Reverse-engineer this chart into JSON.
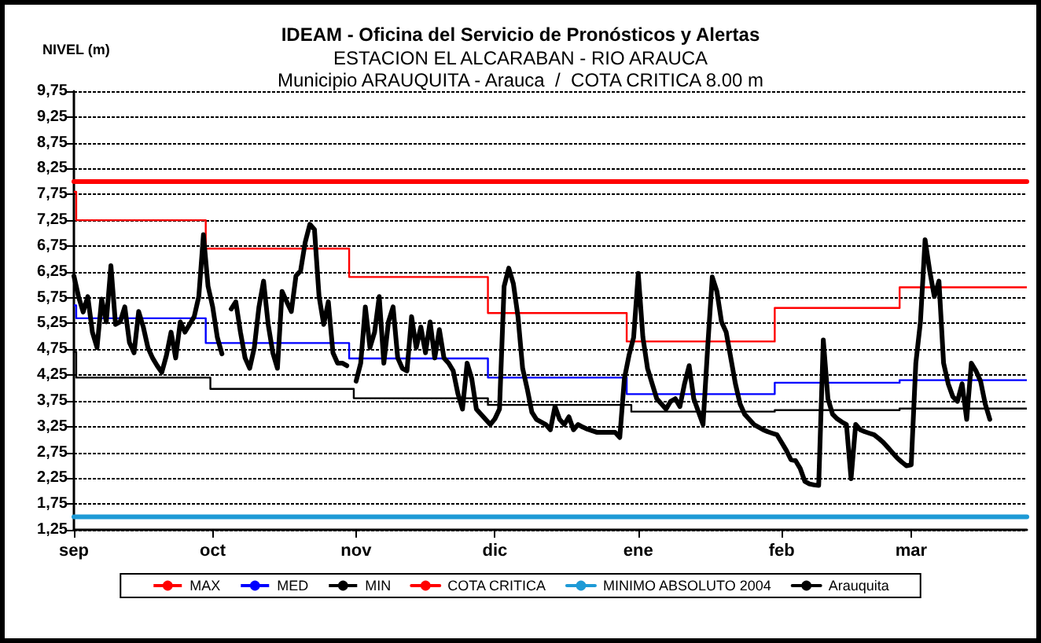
{
  "chart_data": {
    "type": "line",
    "title": "IDEAM - Oficina del Servicio de Pronósticos y Alertas",
    "subtitle": "ESTACION EL ALCARABAN - RIO ARAUCA\nMunicipio ARAUQUITA - Arauca  /  COTA CRITICA 8.00 m",
    "ylabel": "NIVEL (m)",
    "categories": [
      "sep",
      null,
      null,
      null,
      null,
      null,
      null,
      null,
      null,
      null,
      null,
      null,
      null,
      null,
      null,
      null,
      null,
      null,
      null,
      null,
      null,
      null,
      null,
      null,
      null,
      null,
      null,
      null,
      null,
      null,
      "oct",
      null,
      null,
      null,
      null,
      null,
      null,
      null,
      null,
      null,
      null,
      null,
      null,
      null,
      null,
      null,
      null,
      null,
      null,
      null,
      null,
      null,
      null,
      null,
      null,
      null,
      null,
      null,
      null,
      null,
      null,
      "nov",
      null,
      null,
      null,
      null,
      null,
      null,
      null,
      null,
      null,
      null,
      null,
      null,
      null,
      null,
      null,
      null,
      null,
      null,
      null,
      null,
      null,
      null,
      null,
      null,
      null,
      null,
      null,
      null,
      null,
      "dic",
      null,
      null,
      null,
      null,
      null,
      null,
      null,
      null,
      null,
      null,
      null,
      null,
      null,
      null,
      null,
      null,
      null,
      null,
      null,
      null,
      null,
      null,
      null,
      null,
      null,
      null,
      null,
      null,
      null,
      null,
      "ene",
      null,
      null,
      null,
      null,
      null,
      null,
      null,
      null,
      null,
      null,
      null,
      null,
      null,
      null,
      null,
      null,
      null,
      null,
      null,
      null,
      null,
      null,
      null,
      null,
      null,
      null,
      null,
      null,
      null,
      null,
      "feb",
      null,
      null,
      null,
      null,
      null,
      null,
      null,
      null,
      null,
      null,
      null,
      null,
      null,
      null,
      null,
      null,
      null,
      null,
      null,
      null,
      null,
      null,
      null,
      null,
      null,
      null,
      null,
      "mar",
      null,
      null,
      null,
      null,
      null,
      null,
      null,
      null,
      null,
      null,
      null,
      null,
      null,
      null,
      null,
      null,
      null,
      null,
      null,
      null,
      null,
      null,
      null,
      null,
      null
    ],
    "ylim": [
      1.25,
      9.75
    ],
    "yticks": [
      {
        "value": 1.25,
        "label": "1,25"
      },
      {
        "value": 1.75,
        "label": "1,75"
      },
      {
        "value": 2.25,
        "label": "2,25"
      },
      {
        "value": 2.75,
        "label": "2,75"
      },
      {
        "value": 3.25,
        "label": "3,25"
      },
      {
        "value": 3.75,
        "label": "3,75"
      },
      {
        "value": 4.25,
        "label": "4,25"
      },
      {
        "value": 4.75,
        "label": "4,75"
      },
      {
        "value": 5.25,
        "label": "5,25"
      },
      {
        "value": 5.75,
        "label": "5,75"
      },
      {
        "value": 6.25,
        "label": "6,25"
      },
      {
        "value": 6.75,
        "label": "6,75"
      },
      {
        "value": 7.25,
        "label": "7,25"
      },
      {
        "value": 7.75,
        "label": "7,75"
      },
      {
        "value": 8.25,
        "label": "8,25"
      },
      {
        "value": 8.75,
        "label": "8,75"
      },
      {
        "value": 9.25,
        "label": "9,25"
      },
      {
        "value": 9.75,
        "label": "9,75"
      }
    ],
    "grid": "y",
    "legend": "bottom",
    "marker": "none",
    "series": [
      {
        "name": "MAX",
        "type": "step",
        "color": "#ff0000",
        "values": [
          7.8,
          7.25,
          7.25,
          7.25,
          7.25,
          7.25,
          7.25,
          7.25,
          7.25,
          7.25,
          7.25,
          7.25,
          7.25,
          7.25,
          7.25,
          7.25,
          7.25,
          7.25,
          7.25,
          7.25,
          7.25,
          7.25,
          7.25,
          7.25,
          7.25,
          7.25,
          7.25,
          7.25,
          7.25,
          6.7,
          6.7,
          6.7,
          6.7,
          6.7,
          6.7,
          6.7,
          6.7,
          6.7,
          6.7,
          6.7,
          6.7,
          6.7,
          6.7,
          6.7,
          6.7,
          6.7,
          6.7,
          6.7,
          6.7,
          6.7,
          6.7,
          6.7,
          6.7,
          6.7,
          6.7,
          6.7,
          6.7,
          6.7,
          6.7,
          6.7,
          6.15,
          6.15,
          6.15,
          6.15,
          6.15,
          6.15,
          6.15,
          6.15,
          6.15,
          6.15,
          6.15,
          6.15,
          6.15,
          6.15,
          6.15,
          6.15,
          6.15,
          6.15,
          6.15,
          6.15,
          6.15,
          6.15,
          6.15,
          6.15,
          6.15,
          6.15,
          6.15,
          6.15,
          6.15,
          6.15,
          5.45,
          5.45,
          5.45,
          5.45,
          5.45,
          5.45,
          5.45,
          5.45,
          5.45,
          5.45,
          5.45,
          5.45,
          5.45,
          5.45,
          5.45,
          5.45,
          5.45,
          5.45,
          5.45,
          5.45,
          5.45,
          5.45,
          5.45,
          5.45,
          5.45,
          5.45,
          5.45,
          5.45,
          5.45,
          5.45,
          4.9,
          4.9,
          4.9,
          4.9,
          4.9,
          4.9,
          4.9,
          4.9,
          4.9,
          4.9,
          4.9,
          4.9,
          4.9,
          4.9,
          4.9,
          4.9,
          4.9,
          4.9,
          4.9,
          4.9,
          4.9,
          4.9,
          4.9,
          4.9,
          4.9,
          4.9,
          4.9,
          4.9,
          4.9,
          4.9,
          4.9,
          4.9,
          5.55,
          5.55,
          5.55,
          5.55,
          5.55,
          5.55,
          5.55,
          5.55,
          5.55,
          5.55,
          5.55,
          5.55,
          5.55,
          5.55,
          5.55,
          5.55,
          5.55,
          5.55,
          5.55,
          5.55,
          5.55,
          5.55,
          5.55,
          5.55,
          5.55,
          5.55,
          5.55,
          5.95,
          5.95,
          5.95,
          5.95,
          5.95,
          5.95,
          5.95,
          5.95,
          5.95,
          5.95,
          5.95,
          5.95,
          5.95,
          5.95,
          5.95,
          5.95,
          5.95,
          5.95,
          5.95,
          5.95,
          5.95,
          5.95,
          5.95,
          5.95,
          5.95,
          5.95,
          5.95,
          5.95
        ]
      },
      {
        "name": "MED",
        "type": "step",
        "color": "#0000ff",
        "values": [
          5.6,
          5.35,
          5.35,
          5.35,
          5.35,
          5.35,
          5.35,
          5.35,
          5.35,
          5.35,
          5.35,
          5.35,
          5.35,
          5.35,
          5.35,
          5.35,
          5.35,
          5.35,
          5.35,
          5.35,
          5.35,
          5.35,
          5.35,
          5.35,
          5.35,
          5.35,
          5.35,
          5.35,
          5.35,
          4.87,
          4.87,
          4.87,
          4.87,
          4.87,
          4.87,
          4.87,
          4.87,
          4.87,
          4.87,
          4.87,
          4.87,
          4.87,
          4.87,
          4.87,
          4.87,
          4.87,
          4.87,
          4.87,
          4.87,
          4.87,
          4.87,
          4.87,
          4.87,
          4.87,
          4.87,
          4.87,
          4.87,
          4.87,
          4.87,
          4.87,
          4.57,
          4.57,
          4.57,
          4.57,
          4.57,
          4.57,
          4.57,
          4.57,
          4.57,
          4.57,
          4.57,
          4.57,
          4.57,
          4.57,
          4.57,
          4.57,
          4.57,
          4.57,
          4.57,
          4.57,
          4.57,
          4.57,
          4.57,
          4.57,
          4.57,
          4.57,
          4.57,
          4.57,
          4.57,
          4.57,
          4.2,
          4.2,
          4.2,
          4.2,
          4.2,
          4.2,
          4.2,
          4.2,
          4.2,
          4.2,
          4.2,
          4.2,
          4.2,
          4.2,
          4.2,
          4.2,
          4.2,
          4.2,
          4.2,
          4.2,
          4.2,
          4.2,
          4.2,
          4.2,
          4.2,
          4.2,
          4.2,
          4.2,
          4.2,
          4.2,
          3.88,
          3.88,
          3.88,
          3.88,
          3.88,
          3.88,
          3.88,
          3.88,
          3.88,
          3.88,
          3.88,
          3.88,
          3.88,
          3.88,
          3.88,
          3.88,
          3.88,
          3.88,
          3.88,
          3.88,
          3.88,
          3.88,
          3.88,
          3.88,
          3.88,
          3.88,
          3.88,
          3.88,
          3.88,
          3.88,
          3.88,
          3.88,
          4.1,
          4.1,
          4.1,
          4.1,
          4.1,
          4.1,
          4.1,
          4.1,
          4.1,
          4.1,
          4.1,
          4.1,
          4.1,
          4.1,
          4.1,
          4.1,
          4.1,
          4.1,
          4.1,
          4.1,
          4.1,
          4.1,
          4.1,
          4.1,
          4.1,
          4.1,
          4.1,
          4.15,
          4.15,
          4.15,
          4.15,
          4.15,
          4.15,
          4.15,
          4.15,
          4.15,
          4.15,
          4.15,
          4.15,
          4.15,
          4.15,
          4.15,
          4.15,
          4.15,
          4.15,
          4.15,
          4.15,
          4.15,
          4.15,
          4.15,
          4.15,
          4.15,
          4.15,
          4.15,
          4.15
        ]
      },
      {
        "name": "MIN",
        "type": "step",
        "color": "#000000",
        "values": [
          4.7,
          4.2,
          4.2,
          4.2,
          4.2,
          4.2,
          4.2,
          4.2,
          4.2,
          4.2,
          4.2,
          4.2,
          4.2,
          4.2,
          4.2,
          4.2,
          4.2,
          4.2,
          4.2,
          4.2,
          4.2,
          4.2,
          4.2,
          4.2,
          4.2,
          4.2,
          4.2,
          4.2,
          4.2,
          4.2,
          3.98,
          3.98,
          3.98,
          3.98,
          3.98,
          3.98,
          3.98,
          3.98,
          3.98,
          3.98,
          3.98,
          3.98,
          3.98,
          3.98,
          3.98,
          3.98,
          3.98,
          3.98,
          3.98,
          3.98,
          3.98,
          3.98,
          3.98,
          3.98,
          3.98,
          3.98,
          3.98,
          3.98,
          3.98,
          3.98,
          3.98,
          3.8,
          3.8,
          3.8,
          3.8,
          3.8,
          3.8,
          3.8,
          3.8,
          3.8,
          3.8,
          3.8,
          3.8,
          3.8,
          3.8,
          3.8,
          3.8,
          3.8,
          3.8,
          3.8,
          3.8,
          3.8,
          3.8,
          3.8,
          3.8,
          3.8,
          3.8,
          3.8,
          3.8,
          3.8,
          3.67,
          3.67,
          3.67,
          3.67,
          3.67,
          3.67,
          3.67,
          3.67,
          3.67,
          3.67,
          3.67,
          3.67,
          3.67,
          3.67,
          3.67,
          3.67,
          3.67,
          3.67,
          3.67,
          3.67,
          3.67,
          3.67,
          3.67,
          3.67,
          3.67,
          3.67,
          3.67,
          3.67,
          3.67,
          3.67,
          3.67,
          3.54,
          3.54,
          3.54,
          3.54,
          3.54,
          3.54,
          3.54,
          3.54,
          3.54,
          3.54,
          3.54,
          3.54,
          3.54,
          3.54,
          3.54,
          3.54,
          3.54,
          3.54,
          3.54,
          3.54,
          3.54,
          3.54,
          3.54,
          3.54,
          3.54,
          3.54,
          3.54,
          3.54,
          3.54,
          3.54,
          3.54,
          3.57,
          3.57,
          3.57,
          3.57,
          3.57,
          3.57,
          3.57,
          3.57,
          3.57,
          3.57,
          3.57,
          3.57,
          3.57,
          3.57,
          3.57,
          3.57,
          3.57,
          3.57,
          3.57,
          3.57,
          3.57,
          3.57,
          3.57,
          3.57,
          3.57,
          3.57,
          3.57,
          3.6,
          3.6,
          3.6,
          3.6,
          3.6,
          3.6,
          3.6,
          3.6,
          3.6,
          3.6,
          3.6,
          3.6,
          3.6,
          3.6,
          3.6,
          3.6,
          3.6,
          3.6,
          3.6,
          3.6,
          3.6,
          3.6,
          3.6,
          3.6,
          3.6,
          3.6,
          3.6,
          3.6
        ]
      },
      {
        "name": "COTA CRITICA",
        "color": "#ff0000",
        "values": [
          8,
          8,
          8,
          8,
          8,
          8,
          8,
          8,
          8,
          8,
          8,
          8,
          8,
          8,
          8,
          8,
          8,
          8,
          8,
          8,
          8,
          8,
          8,
          8,
          8,
          8,
          8,
          8,
          8,
          8,
          8,
          8,
          8,
          8,
          8,
          8,
          8,
          8,
          8,
          8,
          8,
          8,
          8,
          8,
          8,
          8,
          8,
          8,
          8,
          8,
          8,
          8,
          8,
          8,
          8,
          8,
          8,
          8,
          8,
          8,
          8,
          8,
          8,
          8,
          8,
          8,
          8,
          8,
          8,
          8,
          8,
          8,
          8,
          8,
          8,
          8,
          8,
          8,
          8,
          8,
          8,
          8,
          8,
          8,
          8,
          8,
          8,
          8,
          8,
          8,
          8,
          8,
          8,
          8,
          8,
          8,
          8,
          8,
          8,
          8,
          8,
          8,
          8,
          8,
          8,
          8,
          8,
          8,
          8,
          8,
          8,
          8,
          8,
          8,
          8,
          8,
          8,
          8,
          8,
          8,
          8,
          8,
          8,
          8,
          8,
          8,
          8,
          8,
          8,
          8,
          8,
          8,
          8,
          8,
          8,
          8,
          8,
          8,
          8,
          8,
          8,
          8,
          8,
          8,
          8,
          8,
          8,
          8,
          8,
          8,
          8,
          8,
          8,
          8,
          8,
          8,
          8,
          8,
          8,
          8,
          8,
          8,
          8,
          8,
          8,
          8,
          8,
          8,
          8,
          8,
          8,
          8,
          8,
          8,
          8,
          8,
          8,
          8,
          8,
          8,
          8,
          8,
          8,
          8,
          8,
          8,
          8,
          8,
          8,
          8,
          8,
          8,
          8,
          8,
          8,
          8,
          8,
          8,
          8,
          8,
          8,
          8,
          8,
          8,
          8,
          8,
          8
        ]
      },
      {
        "name": "MINIMO ABSOLUTO 2004",
        "color": "#1e9ad6",
        "values": [
          1.5,
          1.5,
          1.5,
          1.5,
          1.5,
          1.5,
          1.5,
          1.5,
          1.5,
          1.5,
          1.5,
          1.5,
          1.5,
          1.5,
          1.5,
          1.5,
          1.5,
          1.5,
          1.5,
          1.5,
          1.5,
          1.5,
          1.5,
          1.5,
          1.5,
          1.5,
          1.5,
          1.5,
          1.5,
          1.5,
          1.5,
          1.5,
          1.5,
          1.5,
          1.5,
          1.5,
          1.5,
          1.5,
          1.5,
          1.5,
          1.5,
          1.5,
          1.5,
          1.5,
          1.5,
          1.5,
          1.5,
          1.5,
          1.5,
          1.5,
          1.5,
          1.5,
          1.5,
          1.5,
          1.5,
          1.5,
          1.5,
          1.5,
          1.5,
          1.5,
          1.5,
          1.5,
          1.5,
          1.5,
          1.5,
          1.5,
          1.5,
          1.5,
          1.5,
          1.5,
          1.5,
          1.5,
          1.5,
          1.5,
          1.5,
          1.5,
          1.5,
          1.5,
          1.5,
          1.5,
          1.5,
          1.5,
          1.5,
          1.5,
          1.5,
          1.5,
          1.5,
          1.5,
          1.5,
          1.5,
          1.5,
          1.5,
          1.5,
          1.5,
          1.5,
          1.5,
          1.5,
          1.5,
          1.5,
          1.5,
          1.5,
          1.5,
          1.5,
          1.5,
          1.5,
          1.5,
          1.5,
          1.5,
          1.5,
          1.5,
          1.5,
          1.5,
          1.5,
          1.5,
          1.5,
          1.5,
          1.5,
          1.5,
          1.5,
          1.5,
          1.5,
          1.5,
          1.5,
          1.5,
          1.5,
          1.5,
          1.5,
          1.5,
          1.5,
          1.5,
          1.5,
          1.5,
          1.5,
          1.5,
          1.5,
          1.5,
          1.5,
          1.5,
          1.5,
          1.5,
          1.5,
          1.5,
          1.5,
          1.5,
          1.5,
          1.5,
          1.5,
          1.5,
          1.5,
          1.5,
          1.5,
          1.5,
          1.5,
          1.5,
          1.5,
          1.5,
          1.5,
          1.5,
          1.5,
          1.5,
          1.5,
          1.5,
          1.5,
          1.5,
          1.5,
          1.5,
          1.5,
          1.5,
          1.5,
          1.5,
          1.5,
          1.5,
          1.5,
          1.5,
          1.5,
          1.5,
          1.5,
          1.5,
          1.5,
          1.5,
          1.5,
          1.5,
          1.5,
          1.5,
          1.5,
          1.5,
          1.5,
          1.5,
          1.5,
          1.5,
          1.5,
          1.5,
          1.5,
          1.5,
          1.5,
          1.5,
          1.5,
          1.5,
          1.5,
          1.5,
          1.5,
          1.5,
          1.5,
          1.5,
          1.5,
          1.5,
          1.5
        ]
      },
      {
        "name": "Arauquita",
        "color": "#000000",
        "values": [
          6.17,
          5.77,
          5.47,
          5.77,
          5.08,
          4.78,
          5.72,
          5.28,
          6.37,
          5.23,
          5.28,
          5.57,
          4.88,
          4.68,
          5.48,
          5.18,
          4.78,
          4.58,
          4.43,
          4.3,
          4.63,
          5.08,
          4.58,
          5.28,
          5.08,
          5.23,
          5.38,
          5.77,
          6.97,
          5.97,
          5.57,
          4.98,
          4.66,
          null,
          5.53,
          5.67,
          5.08,
          4.58,
          4.38,
          4.78,
          5.57,
          6.07,
          5.23,
          4.68,
          4.38,
          5.87,
          5.67,
          5.48,
          6.17,
          6.27,
          6.82,
          7.17,
          7.07,
          5.77,
          5.23,
          5.67,
          4.68,
          4.48,
          4.48,
          4.43,
          null,
          4.13,
          4.48,
          5.57,
          4.78,
          5.08,
          5.77,
          4.48,
          5.28,
          5.57,
          4.58,
          4.38,
          4.33,
          5.38,
          4.78,
          5.18,
          4.68,
          5.28,
          4.58,
          5.13,
          4.58,
          4.48,
          4.33,
          3.89,
          3.59,
          4.48,
          4.18,
          3.59,
          3.49,
          3.39,
          3.29,
          3.4,
          3.59,
          5.97,
          6.32,
          6.02,
          5.38,
          4.38,
          3.98,
          3.53,
          3.39,
          3.34,
          3.29,
          3.19,
          3.64,
          3.39,
          3.29,
          3.44,
          3.19,
          3.29,
          3.24,
          3.2,
          3.17,
          3.14,
          3.14,
          3.14,
          3.14,
          3.14,
          3.04,
          4.18,
          4.63,
          4.98,
          6.22,
          4.98,
          4.38,
          4.08,
          3.79,
          3.69,
          3.59,
          3.74,
          3.79,
          3.64,
          4.08,
          4.43,
          3.79,
          3.54,
          3.29,
          4.78,
          6.15,
          5.87,
          5.28,
          5.08,
          4.58,
          4.08,
          3.69,
          3.49,
          3.39,
          3.29,
          3.24,
          3.19,
          3.15,
          3.12,
          3.09,
          2.94,
          2.79,
          2.61,
          2.59,
          2.44,
          2.19,
          2.14,
          2.12,
          2.11,
          4.93,
          3.79,
          3.49,
          3.4,
          3.34,
          3.29,
          2.24,
          3.29,
          3.19,
          3.15,
          3.12,
          3.09,
          3.02,
          2.94,
          2.84,
          2.74,
          2.64,
          2.56,
          2.49,
          2.51,
          4.48,
          5.28,
          6.87,
          6.27,
          5.77,
          6.07,
          4.48,
          4.08,
          3.83,
          3.74,
          4.08,
          3.39,
          4.48,
          4.33,
          4.13,
          3.69,
          3.39,
          null,
          null,
          null,
          null,
          null,
          null,
          null,
          null
        ]
      }
    ]
  }
}
